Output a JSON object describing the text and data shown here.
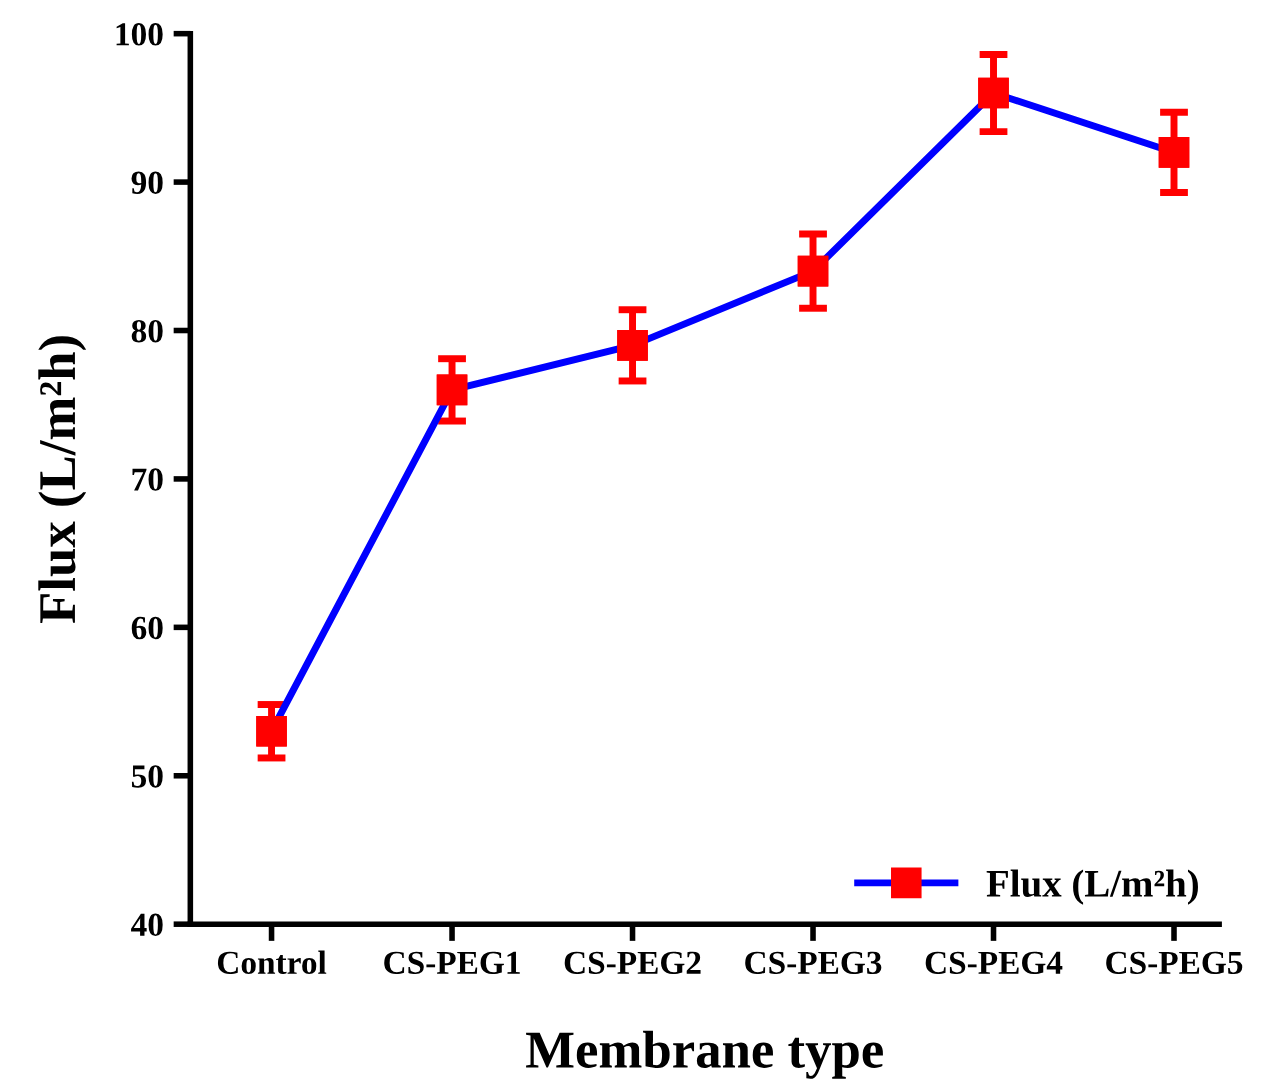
{
  "chart_data": {
    "type": "line",
    "xlabel": "Membrane type",
    "ylabel": "Flux (L/m²h)",
    "categories": [
      "Control",
      "CS-PEG1",
      "CS-PEG2",
      "CS-PEG3",
      "CS-PEG4",
      "CS-PEG5"
    ],
    "series": [
      {
        "name": "Flux (L/m²h)",
        "color": "#0000ff",
        "colors": [
          "#ff0000",
          "#ff0000",
          "#ff0000",
          "#ff0000",
          "#ff0000",
          "#ff0000"
        ],
        "values": [
          53,
          76,
          79,
          84,
          96,
          92
        ],
        "errors": [
          1.8,
          2.1,
          2.4,
          2.5,
          2.6,
          2.7
        ]
      }
    ],
    "ylim": [
      40,
      100
    ],
    "yticks": [
      40,
      50,
      60,
      70,
      80,
      90,
      100
    ],
    "marker": "square",
    "line_style": "solid",
    "legend": "bottom right",
    "grid": false
  }
}
